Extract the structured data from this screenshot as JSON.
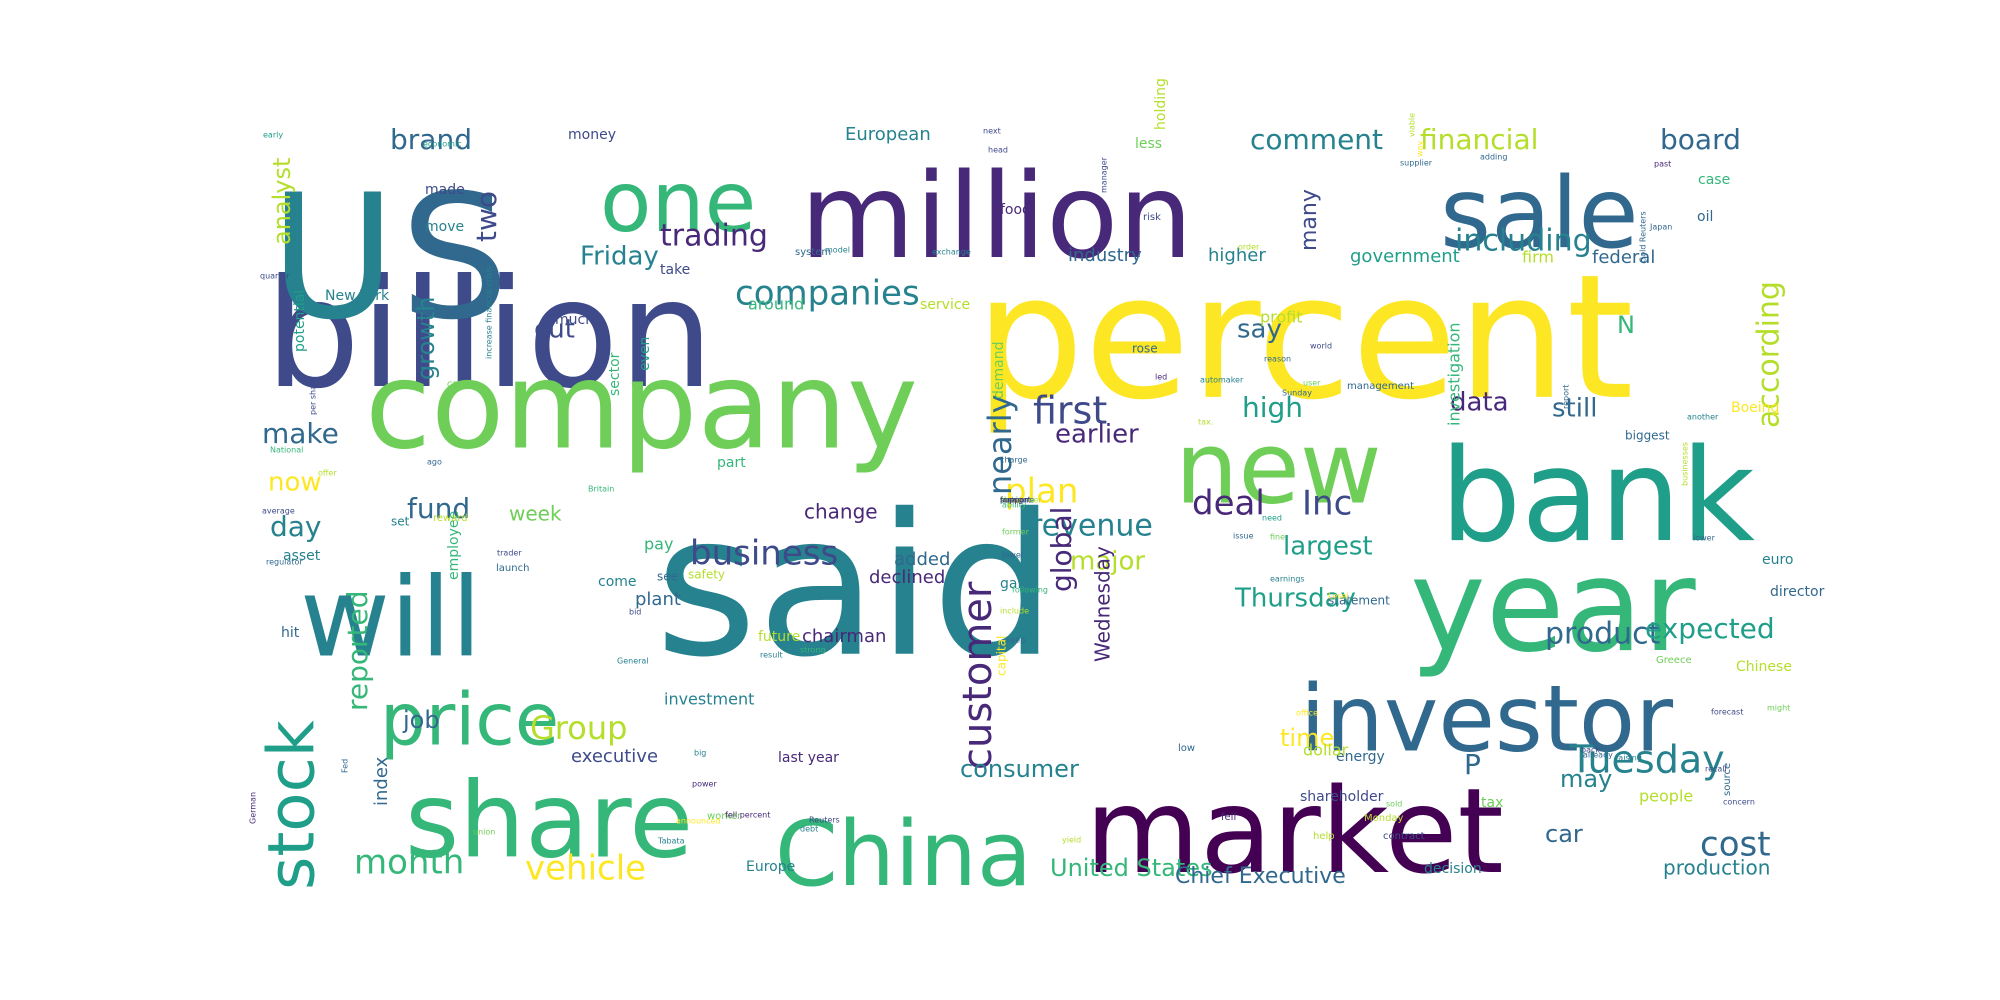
{
  "palette": [
    "#440154",
    "#482878",
    "#3e4a89",
    "#31688e",
    "#26828e",
    "#1f9e89",
    "#35b779",
    "#6ece58",
    "#b5de2b",
    "#fde725"
  ],
  "words": [
    {
      "text": "said",
      "color": "#26828e"
    },
    {
      "text": "percent",
      "color": "#fde725"
    },
    {
      "text": "billion",
      "color": "#3e4a89"
    },
    {
      "text": "company",
      "color": "#6ece58"
    },
    {
      "text": "million",
      "color": "#482878"
    },
    {
      "text": "market",
      "color": "#440154"
    },
    {
      "text": "U",
      "color": "#26828e"
    },
    {
      "text": "S",
      "color": "#31688e"
    },
    {
      "text": "bank",
      "color": "#1f9e89"
    },
    {
      "text": "year",
      "color": "#35b779"
    },
    {
      "text": "will",
      "color": "#26828e"
    },
    {
      "text": "share",
      "color": "#35b779"
    },
    {
      "text": "investor",
      "color": "#31688e"
    },
    {
      "text": "new",
      "color": "#6ece58"
    },
    {
      "text": "sale",
      "color": "#31688e"
    },
    {
      "text": "one",
      "color": "#35b779"
    },
    {
      "text": "China",
      "color": "#35b779"
    },
    {
      "text": "price",
      "color": "#35b779"
    },
    {
      "text": "stock",
      "color": "#1f9e89"
    },
    {
      "text": "Tuesday",
      "color": "#26828e"
    },
    {
      "text": "customer",
      "color": "#482878"
    },
    {
      "text": "companies",
      "color": "#26828e"
    },
    {
      "text": "including",
      "color": "#26828e"
    },
    {
      "text": "business",
      "color": "#3e4a89"
    },
    {
      "text": "cost",
      "color": "#31688e"
    },
    {
      "text": "first",
      "color": "#3e4a89"
    },
    {
      "text": "month",
      "color": "#35b779"
    },
    {
      "text": "vehicle",
      "color": "#fde725"
    },
    {
      "text": "according",
      "color": "#b5de2b"
    },
    {
      "text": "trading",
      "color": "#482878"
    },
    {
      "text": "deal",
      "color": "#482878"
    },
    {
      "text": "Inc",
      "color": "#3e4a89"
    },
    {
      "text": "product",
      "color": "#31688e"
    },
    {
      "text": "expected",
      "color": "#1f9e89"
    },
    {
      "text": "plan",
      "color": "#fde725"
    },
    {
      "text": "Group",
      "color": "#b5de2b"
    },
    {
      "text": "revenue",
      "color": "#26828e"
    },
    {
      "text": "comment",
      "color": "#26828e"
    },
    {
      "text": "financial",
      "color": "#b5de2b"
    },
    {
      "text": "board",
      "color": "#31688e"
    },
    {
      "text": "two",
      "color": "#3e4a89"
    },
    {
      "text": "brand",
      "color": "#31688e"
    },
    {
      "text": "Friday",
      "color": "#26828e"
    },
    {
      "text": "high",
      "color": "#1f9e89"
    },
    {
      "text": "say",
      "color": "#31688e"
    },
    {
      "text": "Thursday",
      "color": "#1f9e89"
    },
    {
      "text": "largest",
      "color": "#1f9e89"
    },
    {
      "text": "data",
      "color": "#482878"
    },
    {
      "text": "still",
      "color": "#31688e"
    },
    {
      "text": "major",
      "color": "#b5de2b"
    },
    {
      "text": "earlier",
      "color": "#482878"
    },
    {
      "text": "fund",
      "color": "#31688e"
    },
    {
      "text": "make",
      "color": "#31688e"
    },
    {
      "text": "day",
      "color": "#26828e"
    },
    {
      "text": "now",
      "color": "#fde725"
    },
    {
      "text": "cut",
      "color": "#3e4a89"
    },
    {
      "text": "growth",
      "color": "#26828e"
    },
    {
      "text": "reported",
      "color": "#35b779"
    },
    {
      "text": "job",
      "color": "#31688e"
    },
    {
      "text": "consumer",
      "color": "#26828e"
    },
    {
      "text": "time",
      "color": "#fde725"
    },
    {
      "text": "may",
      "color": "#26828e"
    },
    {
      "text": "car",
      "color": "#31688e"
    },
    {
      "text": "United States",
      "color": "#35b779"
    },
    {
      "text": "Chief Executive",
      "color": "#31688e"
    },
    {
      "text": "production",
      "color": "#26828e"
    },
    {
      "text": "nearly",
      "color": "#31688e"
    },
    {
      "text": "global",
      "color": "#482878"
    },
    {
      "text": "Wednesday",
      "color": "#482878"
    },
    {
      "text": "analyst",
      "color": "#b5de2b"
    },
    {
      "text": "many",
      "color": "#3e4a89"
    },
    {
      "text": "index",
      "color": "#31688e"
    },
    {
      "text": "week",
      "color": "#6ece58"
    },
    {
      "text": "change",
      "color": "#482878"
    },
    {
      "text": "added",
      "color": "#31688e"
    },
    {
      "text": "declined",
      "color": "#482878"
    },
    {
      "text": "plant",
      "color": "#31688e"
    },
    {
      "text": "investment",
      "color": "#26828e"
    },
    {
      "text": "executive",
      "color": "#3e4a89"
    },
    {
      "text": "last year",
      "color": "#482878"
    },
    {
      "text": "energy",
      "color": "#31688e"
    },
    {
      "text": "shareholder",
      "color": "#3e4a89"
    },
    {
      "text": "dollar",
      "color": "#b5de2b"
    },
    {
      "text": "people",
      "color": "#b5de2b"
    },
    {
      "text": "tax",
      "color": "#6ece58"
    },
    {
      "text": "Europe",
      "color": "#26828e"
    },
    {
      "text": "decision",
      "color": "#26828e"
    },
    {
      "text": "European",
      "color": "#26828e"
    },
    {
      "text": "money",
      "color": "#3e4a89"
    },
    {
      "text": "food",
      "color": "#482878"
    },
    {
      "text": "made",
      "color": "#3e4a89"
    },
    {
      "text": "move",
      "color": "#26828e"
    },
    {
      "text": "potential",
      "color": "#1f9e89"
    },
    {
      "text": "industry",
      "color": "#31688e"
    },
    {
      "text": "higher",
      "color": "#26828e"
    },
    {
      "text": "government",
      "color": "#1f9e89"
    },
    {
      "text": "profit",
      "color": "#b5de2b"
    },
    {
      "text": "around",
      "color": "#35b779"
    },
    {
      "text": "service",
      "color": "#b5de2b"
    },
    {
      "text": "New York",
      "color": "#26828e"
    },
    {
      "text": "much",
      "color": "#3e4a89"
    },
    {
      "text": "even",
      "color": "#1f9e89"
    },
    {
      "text": "sector",
      "color": "#35b779"
    },
    {
      "text": "oil",
      "color": "#31688e"
    },
    {
      "text": "federal",
      "color": "#31688e"
    },
    {
      "text": "firm",
      "color": "#b5de2b"
    },
    {
      "text": "case",
      "color": "#35b779"
    },
    {
      "text": "euro",
      "color": "#26828e"
    },
    {
      "text": "director",
      "color": "#31688e"
    },
    {
      "text": "Chinese",
      "color": "#b5de2b"
    },
    {
      "text": "Boeing",
      "color": "#fde725"
    },
    {
      "text": "statement",
      "color": "#31688e"
    },
    {
      "text": "employee",
      "color": "#35b779"
    },
    {
      "text": "chairman",
      "color": "#482878"
    },
    {
      "text": "future",
      "color": "#b5de2b"
    },
    {
      "text": "pay",
      "color": "#35b779"
    },
    {
      "text": "part",
      "color": "#35b779"
    },
    {
      "text": "take",
      "color": "#3e4a89"
    },
    {
      "text": "asset",
      "color": "#26828e"
    },
    {
      "text": "hit",
      "color": "#31688e"
    },
    {
      "text": "come",
      "color": "#26828e"
    },
    {
      "text": "demand",
      "color": "#6ece58"
    },
    {
      "text": "capital",
      "color": "#fde725"
    },
    {
      "text": "gain",
      "color": "#26828e"
    },
    {
      "text": "less",
      "color": "#6ece58"
    },
    {
      "text": "holding",
      "color": "#b5de2b"
    },
    {
      "text": "rose",
      "color": "#31688e"
    },
    {
      "text": "N",
      "color": "#35b779"
    },
    {
      "text": "P",
      "color": "#31688e"
    },
    {
      "text": "investigation",
      "color": "#35b779"
    },
    {
      "text": "safety",
      "color": "#b5de2b"
    },
    {
      "text": "see",
      "color": "#31688e"
    },
    {
      "text": "set",
      "color": "#26828e"
    },
    {
      "text": "reward",
      "color": "#b5de2b"
    },
    {
      "text": "management",
      "color": "#31688e"
    },
    {
      "text": "biggest",
      "color": "#31688e"
    },
    {
      "text": "early",
      "color": "#1f9e89"
    },
    {
      "text": "next",
      "color": "#3e4a89"
    },
    {
      "text": "manager",
      "color": "#3e4a89"
    },
    {
      "text": "supplier",
      "color": "#31688e"
    },
    {
      "text": "adding",
      "color": "#31688e"
    },
    {
      "text": "past",
      "color": "#482878"
    },
    {
      "text": "risk",
      "color": "#3e4a89"
    },
    {
      "text": "head",
      "color": "#3e4a89"
    },
    {
      "text": "Japan",
      "color": "#31688e"
    },
    {
      "text": "quarter",
      "color": "#3e4a89"
    },
    {
      "text": "model",
      "color": "#26828e"
    },
    {
      "text": "system",
      "color": "#31688e"
    },
    {
      "text": "exchange",
      "color": "#26828e"
    },
    {
      "text": "order",
      "color": "#b5de2b"
    },
    {
      "text": "yield",
      "color": "#b5de2b"
    },
    {
      "text": "low",
      "color": "#31688e"
    },
    {
      "text": "fell",
      "color": "#482878"
    },
    {
      "text": "Monday",
      "color": "#b5de2b"
    },
    {
      "text": "source",
      "color": "#31688e"
    },
    {
      "text": "recall",
      "color": "#3e4a89"
    },
    {
      "text": "concern",
      "color": "#3e4a89"
    },
    {
      "text": "help",
      "color": "#b5de2b"
    },
    {
      "text": "contract",
      "color": "#3e4a89"
    },
    {
      "text": "result",
      "color": "#26828e"
    },
    {
      "text": "office",
      "color": "#fde725"
    },
    {
      "text": "another",
      "color": "#26828e"
    },
    {
      "text": "report",
      "color": "#31688e"
    },
    {
      "text": "Greece",
      "color": "#6ece58"
    },
    {
      "text": "National",
      "color": "#35b779"
    },
    {
      "text": "per share",
      "color": "#3e4a89"
    },
    {
      "text": "world",
      "color": "#3e4a89"
    },
    {
      "text": "businesses",
      "color": "#b5de2b"
    },
    {
      "text": "lower",
      "color": "#31688e"
    },
    {
      "text": "issue",
      "color": "#31688e"
    },
    {
      "text": "earnings",
      "color": "#26828e"
    },
    {
      "text": "launch",
      "color": "#31688e"
    },
    {
      "text": "trader",
      "color": "#3e4a89"
    },
    {
      "text": "strong",
      "color": "#35b779"
    },
    {
      "text": "bid",
      "color": "#3e4a89"
    },
    {
      "text": "big",
      "color": "#26828e"
    },
    {
      "text": "power",
      "color": "#482878"
    },
    {
      "text": "worker",
      "color": "#6ece58"
    },
    {
      "text": "debt",
      "color": "#26828e"
    },
    {
      "text": "fell percent",
      "color": "#482878"
    },
    {
      "text": "announced",
      "color": "#fde725"
    },
    {
      "text": "Tabata",
      "color": "#26828e"
    },
    {
      "text": "German",
      "color": "#482878"
    },
    {
      "text": "Fed",
      "color": "#31688e"
    },
    {
      "text": "General",
      "color": "#26828e"
    },
    {
      "text": "forecast",
      "color": "#3e4a89"
    },
    {
      "text": "regulator",
      "color": "#31688e"
    },
    {
      "text": "average",
      "color": "#3e4a89"
    },
    {
      "text": "offer",
      "color": "#b5de2b"
    },
    {
      "text": "ago",
      "color": "#31688e"
    },
    {
      "text": "CEO",
      "color": "#6ece58"
    },
    {
      "text": "Sunday",
      "color": "#31688e"
    },
    {
      "text": "reason",
      "color": "#31688e"
    },
    {
      "text": "led",
      "color": "#482878"
    },
    {
      "text": "user",
      "color": "#6ece58"
    },
    {
      "text": "way",
      "color": "#fde725"
    },
    {
      "text": "viable",
      "color": "#b5de2b"
    },
    {
      "text": "Gold Reuters",
      "color": "#31688e"
    },
    {
      "text": "Britain",
      "color": "#35b779"
    },
    {
      "text": "economic",
      "color": "#1f9e89"
    },
    {
      "text": "increase financial crisis",
      "color": "#26828e"
    },
    {
      "text": "union",
      "color": "#6ece58"
    },
    {
      "text": "Reuters",
      "color": "#3e4a89"
    },
    {
      "text": "raising",
      "color": "#26828e"
    },
    {
      "text": "already",
      "color": "#31688e"
    },
    {
      "text": "sold",
      "color": "#6ece58"
    },
    {
      "text": "fine",
      "color": "#6ece58"
    },
    {
      "text": "need",
      "color": "#1f9e89"
    },
    {
      "text": "back",
      "color": "#3e4a89"
    },
    {
      "text": "might",
      "color": "#6ece58"
    },
    {
      "text": "automaker",
      "color": "#26828e"
    },
    {
      "text": "Jewel",
      "color": "#31688e"
    },
    {
      "text": "Lesel",
      "color": "#fde725"
    },
    {
      "text": "tax.",
      "color": "#b5de2b"
    },
    {
      "text": "keep",
      "color": "#31688e"
    },
    {
      "text": "former",
      "color": "#6ece58"
    },
    {
      "text": "charge",
      "color": "#31688e"
    },
    {
      "text": "following",
      "color": "#35b779"
    },
    {
      "text": "include",
      "color": "#b5de2b"
    },
    {
      "text": "ability",
      "color": "#35b779"
    },
    {
      "text": "sheet",
      "color": "#b5de2b"
    },
    {
      "text": "November",
      "color": "#b5de2b"
    },
    {
      "text": "pressure",
      "color": "#26828e"
    },
    {
      "text": "lost",
      "color": "#6ece58"
    },
    {
      "text": "foreign",
      "color": "#3e4a89"
    },
    {
      "text": "support",
      "color": "#482878"
    }
  ]
}
